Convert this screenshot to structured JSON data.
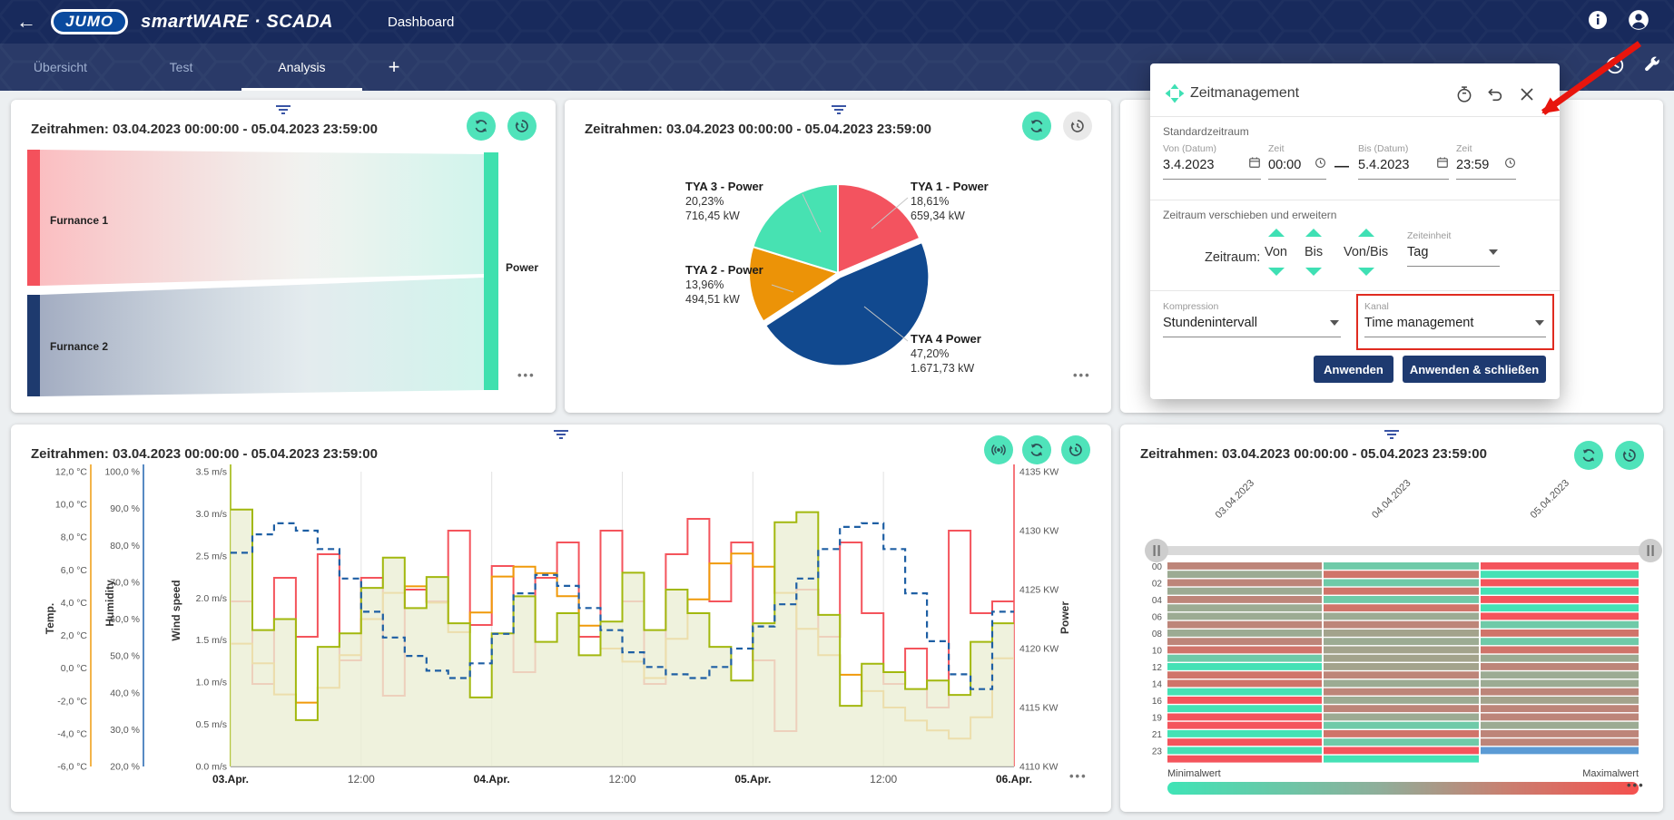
{
  "header": {
    "logo_text": "JUMO",
    "brand": "smartWARE · SCADA",
    "page_title": "Dashboard"
  },
  "tabs": [
    {
      "label": "Übersicht",
      "active": false
    },
    {
      "label": "Test",
      "active": false
    },
    {
      "label": "Analysis",
      "active": true
    },
    {
      "label": "+",
      "active": false
    }
  ],
  "panels": {
    "timeframe_title": "Zeitrahmen: 03.04.2023 00:00:00 - 05.04.2023 23:59:00",
    "more_glyph": "•••"
  },
  "dialog": {
    "title": "Zeitmanagement",
    "section_standard": "Standardzeitraum",
    "von_label": "Von (Datum)",
    "von_value": "3.4.2023",
    "zeit_from_label": "Zeit",
    "zeit_from_value": "00:00",
    "range_dash": "—",
    "bis_label": "Bis (Datum)",
    "bis_value": "5.4.2023",
    "zeit_to_label": "Zeit",
    "zeit_to_value": "23:59",
    "section_shift": "Zeitraum verschieben und erweitern",
    "zeitraum_label": "Zeitraum:",
    "shift_cols": [
      "Von",
      "Bis",
      "Von/Bis"
    ],
    "zeiteinheit_label": "Zeiteinheit",
    "zeiteinheit_value": "Tag",
    "kompression_label": "Kompression",
    "kompression_value": "Stundenintervall",
    "kanal_label": "Kanal",
    "kanal_value": "Time management",
    "apply_label": "Anwenden",
    "apply_close_label": "Anwenden & schließen"
  },
  "chart_data": [
    {
      "type": "sankey",
      "title": "Zeitrahmen: 03.04.2023 00:00:00 - 05.04.2023 23:59:00",
      "nodes": [
        {
          "name": "Furnance 1",
          "color": "#f4515c"
        },
        {
          "name": "Furnance 2",
          "color": "#1e3a6e"
        },
        {
          "name": "Power",
          "color": "#3fe0ae"
        }
      ],
      "links": [
        {
          "source": "Furnance 1",
          "target": "Power"
        },
        {
          "source": "Furnance 2",
          "target": "Power"
        }
      ]
    },
    {
      "type": "pie",
      "title": "Zeitrahmen: 03.04.2023 00:00:00 - 05.04.2023 23:59:00",
      "start_angle_deg": -90,
      "slices": [
        {
          "label": "TYA 1 - Power",
          "percent": 18.61,
          "percent_label": "18,61%",
          "value_label": "659,34 kW",
          "color": "#f3535f",
          "exploded": false
        },
        {
          "label": "TYA 4 Power",
          "percent": 47.2,
          "percent_label": "47,20%",
          "value_label": "1.671,73 kW",
          "color": "#11498f",
          "exploded": true
        },
        {
          "label": "TYA 2 - Power",
          "percent": 13.96,
          "percent_label": "13,96%",
          "value_label": "494,51 kW",
          "color": "#ec9307",
          "exploded": false
        },
        {
          "label": "TYA 3 - Power",
          "percent": 20.23,
          "percent_label": "20,23%",
          "value_label": "716,45 kW",
          "color": "#47e2b2",
          "exploded": false
        }
      ]
    },
    {
      "type": "line",
      "title": "Zeitrahmen: 03.04.2023 00:00:00 - 05.04.2023 23:59:00",
      "x_ticks": [
        "03.Apr.",
        "12:00",
        "04.Apr.",
        "12:00",
        "05.Apr.",
        "12:00",
        "06.Apr."
      ],
      "x_hours_total": 72,
      "hours_per_step": 2,
      "grid": true,
      "legend_position": "none",
      "axes": [
        {
          "title": "Temp.",
          "color": "#f0a11c",
          "range": [
            -6,
            12
          ],
          "ticks": [
            "12,0 °C",
            "10,0 °C",
            "8,0 °C",
            "6,0 °C",
            "4,0 °C",
            "2,0 °C",
            "0,0 °C",
            "-2,0 °C",
            "-4,0 °C",
            "-6,0 °C"
          ]
        },
        {
          "title": "Humidity",
          "color": "#2e6db4",
          "range": [
            20,
            100
          ],
          "ticks": [
            "100,0 %",
            "90,0 %",
            "80,0 %",
            "70,0 %",
            "60,0 %",
            "50,0 %",
            "40,0 %",
            "30,0 %",
            "20,0 %"
          ]
        },
        {
          "title": "Wind speed",
          "color": "#a2b80e",
          "range": [
            0,
            3.5
          ],
          "ticks": [
            "3.5 m/s",
            "3.0 m/s",
            "2.5 m/s",
            "2.0 m/s",
            "1.5 m/s",
            "1.0 m/s",
            "0.5 m/s",
            "0.0 m/s"
          ]
        },
        {
          "title": "Power",
          "color": "#f4545c",
          "range": [
            4110,
            4135
          ],
          "ticks": [
            "4135 KW",
            "4130 KW",
            "4125 KW",
            "4120 KW",
            "4115 KW",
            "4110 KW"
          ]
        }
      ],
      "series": [
        {
          "name": "Power",
          "axis": 3,
          "color": "#f4545c",
          "style": "step",
          "values": [
            4124,
            4117,
            4126,
            4121,
            4128,
            4119,
            4126,
            4116,
            4125,
            4124,
            4130,
            4122,
            4127,
            4118,
            4126,
            4129,
            4121,
            4130,
            4124,
            4117,
            4128,
            4131,
            4124,
            4129,
            4119,
            4113,
            4125,
            4121,
            4129,
            4123,
            4117,
            4120,
            4115,
            4130,
            4123,
            4124
          ]
        },
        {
          "name": "Temp.",
          "axis": 0,
          "color": "#f09a0a",
          "style": "step",
          "values": [
            1.5,
            0.3,
            -1.6,
            -2.1,
            -1.2,
            0.8,
            3.0,
            4.6,
            5.0,
            4.0,
            2.2,
            3.4,
            5.6,
            6.2,
            5.8,
            4.4,
            2.6,
            1.2,
            0.4,
            -0.6,
            1.8,
            4.2,
            6.4,
            7.0,
            6.2,
            4.6,
            2.4,
            0.8,
            -0.4,
            -1.4,
            -2.4,
            -3.2,
            -3.8,
            -4.3,
            -3.0,
            0.6
          ]
        },
        {
          "name": "Wind speed",
          "axis": 2,
          "color": "#a2b80e",
          "style": "step-area",
          "fill": "rgba(235,239,212,0.8)",
          "values": [
            3.05,
            1.62,
            1.75,
            0.55,
            1.42,
            1.58,
            2.12,
            2.48,
            1.88,
            2.25,
            1.7,
            0.82,
            1.58,
            2.02,
            1.48,
            1.82,
            1.32,
            1.72,
            2.3,
            1.62,
            2.1,
            1.82,
            1.42,
            1.02,
            1.7,
            2.9,
            3.02,
            1.8,
            0.72,
            1.22,
            1.12,
            0.92,
            1.02,
            0.85,
            1.48,
            1.7
          ]
        },
        {
          "name": "Humidity",
          "axis": 1,
          "color": "#1e5fa4",
          "style": "dashed",
          "values": [
            78,
            83,
            86,
            84,
            79,
            71,
            62,
            55,
            50,
            46,
            44,
            48,
            56,
            67,
            72,
            69,
            63,
            57,
            51,
            47,
            45,
            44,
            47,
            52,
            58,
            64,
            71,
            79,
            85,
            86,
            79,
            67,
            54,
            45,
            41,
            62
          ]
        }
      ]
    },
    {
      "type": "heatmap",
      "title": "Zeitrahmen: 03.04.2023 00:00:00 - 05.04.2023 23:59:00",
      "columns": [
        "03.04.2023",
        "04.04.2023",
        "05.04.2023"
      ],
      "row_labels": [
        "00",
        "02",
        "04",
        "06",
        "08",
        "10",
        "12",
        "14",
        "16",
        "19",
        "21",
        "23"
      ],
      "legend_min": "Minimalwert",
      "legend_max": "Maximalwert",
      "gradient": [
        "#3fe4b6",
        "#8fae9a",
        "#c97f70",
        "#f5504e"
      ],
      "matrix": [
        [
          "#bd8579",
          "#6fcaa8",
          "#f4545c"
        ],
        [
          "#9cab93",
          "#d0746a",
          "#45e1b5"
        ],
        [
          "#bd8579",
          "#6fcaa8",
          "#f4545c"
        ],
        [
          "#9cab93",
          "#d0746a",
          "#45e1b5"
        ],
        [
          "#bd8579",
          "#6fcaa8",
          "#f4545c"
        ],
        [
          "#9cab93",
          "#d0746a",
          "#45e1b5"
        ],
        [
          "#9cab93",
          "#9cab93",
          "#f4545c"
        ],
        [
          "#bd8579",
          "#bd8579",
          "#6fcaa8"
        ],
        [
          "#9cab93",
          "#a3a38c",
          "#d0746a"
        ],
        [
          "#bd8579",
          "#9cab93",
          "#6fcaa8"
        ],
        [
          "#d0746a",
          "#a3a38c",
          "#d0746a"
        ],
        [
          "#6fcaa8",
          "#a3a38c",
          "#9cab93"
        ],
        [
          "#45e1b5",
          "#a3a38c",
          "#bd8579"
        ],
        [
          "#d0746a",
          "#bd8579",
          "#9cab93"
        ],
        [
          "#d0746a",
          "#9cab93",
          "#9cab93"
        ],
        [
          "#45e1b5",
          "#bd8579",
          "#bd8579"
        ],
        [
          "#f4545c",
          "#9cab93",
          "#a3a38c"
        ],
        [
          "#45e1b5",
          "#bd8579",
          "#bd8579"
        ],
        [
          "#f4545c",
          "#9cab93",
          "#bd8579"
        ],
        [
          "#f4545c",
          "#6fcaa8",
          "#9cab93"
        ],
        [
          "#45e1b5",
          "#d0746a",
          "#bd8579"
        ],
        [
          "#f4545c",
          "#6fcaa8",
          "#bd8579"
        ],
        [
          "#45e1b5",
          "#f4545c",
          "#5b9bd5"
        ],
        [
          "#f4545c",
          "#45e1b5",
          null
        ]
      ]
    }
  ]
}
